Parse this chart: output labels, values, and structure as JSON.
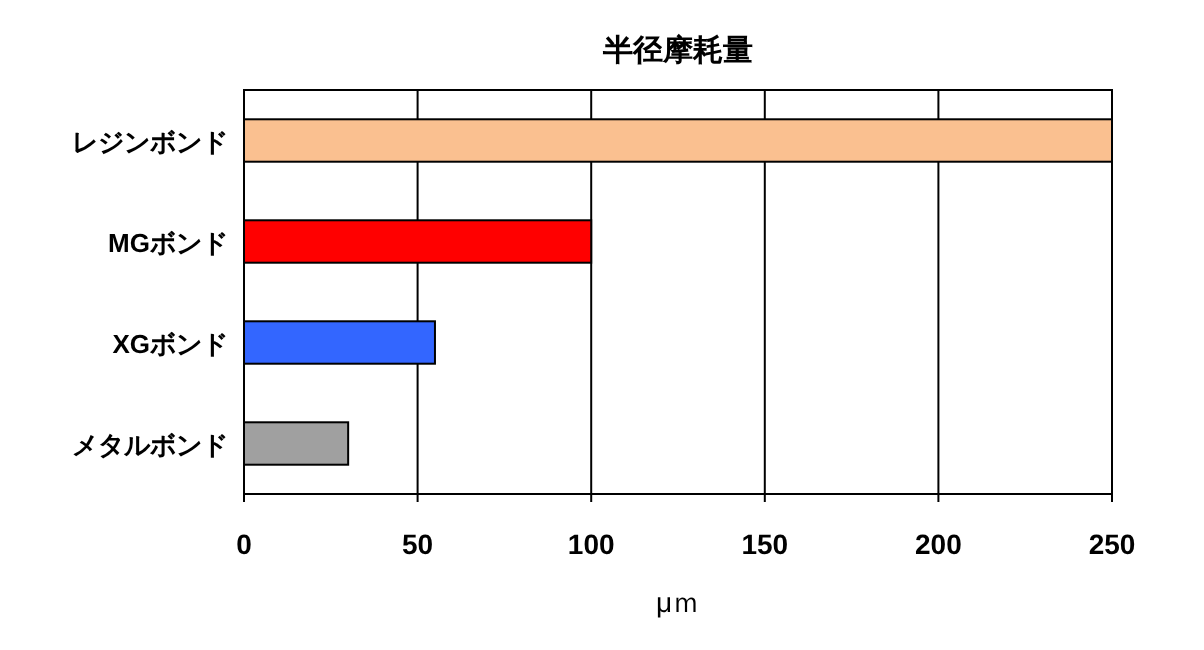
{
  "chart_data": {
    "type": "bar",
    "orientation": "horizontal",
    "title": "半径摩耗量",
    "xlabel": "μｍ",
    "categories": [
      "レジンボンド",
      "MGボンド",
      "XGボンド",
      "メタルボンド"
    ],
    "values": [
      250,
      100,
      55,
      30
    ],
    "colors": [
      "#fac090",
      "#ff0000",
      "#3366ff",
      "#a0a0a0"
    ],
    "xlim": [
      0,
      250
    ],
    "xticks": [
      0,
      50,
      100,
      150,
      200,
      250
    ],
    "grid": "x"
  }
}
